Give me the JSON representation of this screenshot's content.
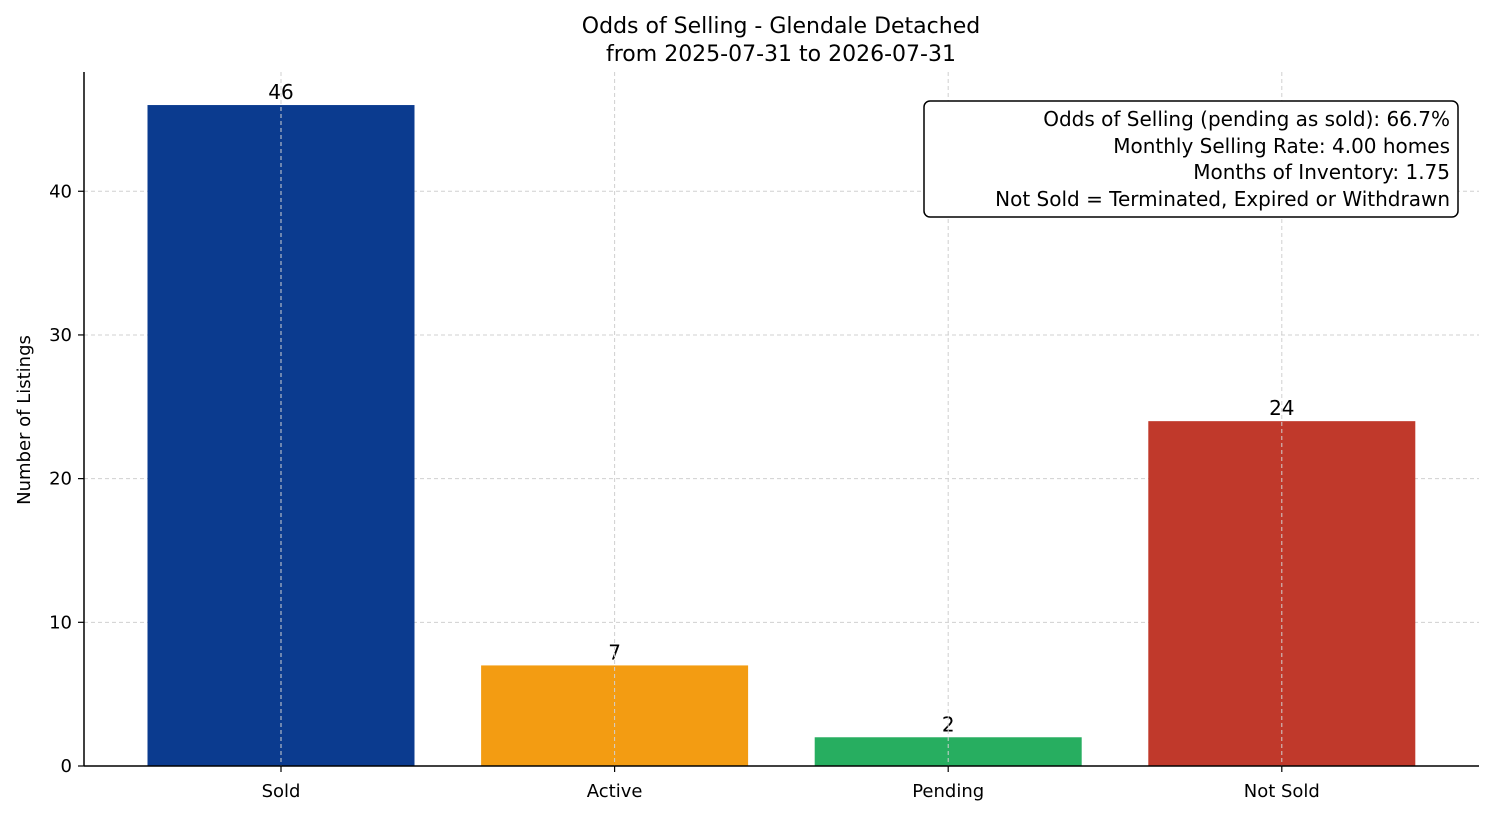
{
  "chart_data": {
    "type": "bar",
    "title": "Odds of Selling - Glendale Detached",
    "subtitle": "from 2025-07-31 to 2026-07-31",
    "xlabel": "",
    "ylabel": "Number of Listings",
    "categories": [
      "Sold",
      "Active",
      "Pending",
      "Not Sold"
    ],
    "values": [
      46,
      7,
      2,
      24
    ],
    "colors": [
      "#0b3b8f",
      "#f39c12",
      "#27ae60",
      "#c0392b"
    ],
    "ylim": [
      0,
      48.3
    ],
    "yticks": [
      0,
      10,
      20,
      30,
      40
    ],
    "grid": true,
    "annotation": {
      "placement": "top-right",
      "lines": [
        "Odds of Selling (pending as sold): 66.7%",
        "Monthly Selling Rate: 4.00 homes",
        "Months of Inventory: 1.75",
        "Not Sold = Terminated, Expired or Withdrawn"
      ]
    }
  }
}
